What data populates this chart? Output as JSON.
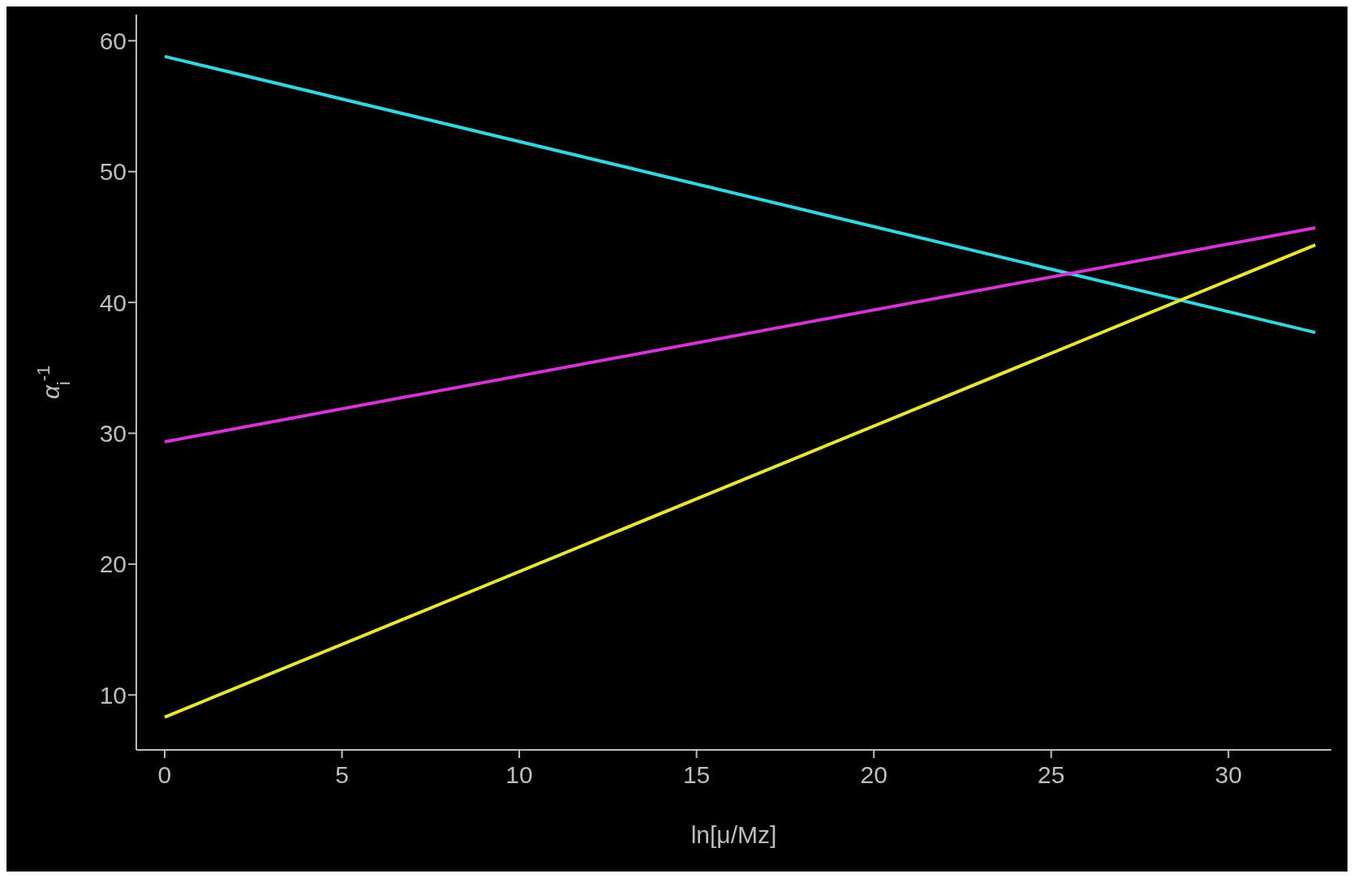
{
  "chart_data": {
    "type": "line",
    "xlabel": "ln[μ/Mz]",
    "ylabel": "α$_{i}$$^{-1}$",
    "xlim": [
      -0.8,
      32.9
    ],
    "xticks": [
      0,
      5,
      10,
      15,
      20,
      25,
      30
    ],
    "ylim": [
      5.8,
      62
    ],
    "yticks": [
      10,
      20,
      30,
      40,
      50,
      60
    ],
    "grid": false,
    "marker": "none",
    "line_style": "solid",
    "x": [
      0,
      32.45
    ],
    "series": [
      {
        "color": "#33d6dc",
        "values": [
          58.8,
          37.7
        ]
      },
      {
        "color": "#d633d6",
        "values": [
          29.35,
          45.7
        ]
      },
      {
        "color": "#e6e633",
        "values": [
          8.3,
          44.4
        ]
      }
    ]
  }
}
